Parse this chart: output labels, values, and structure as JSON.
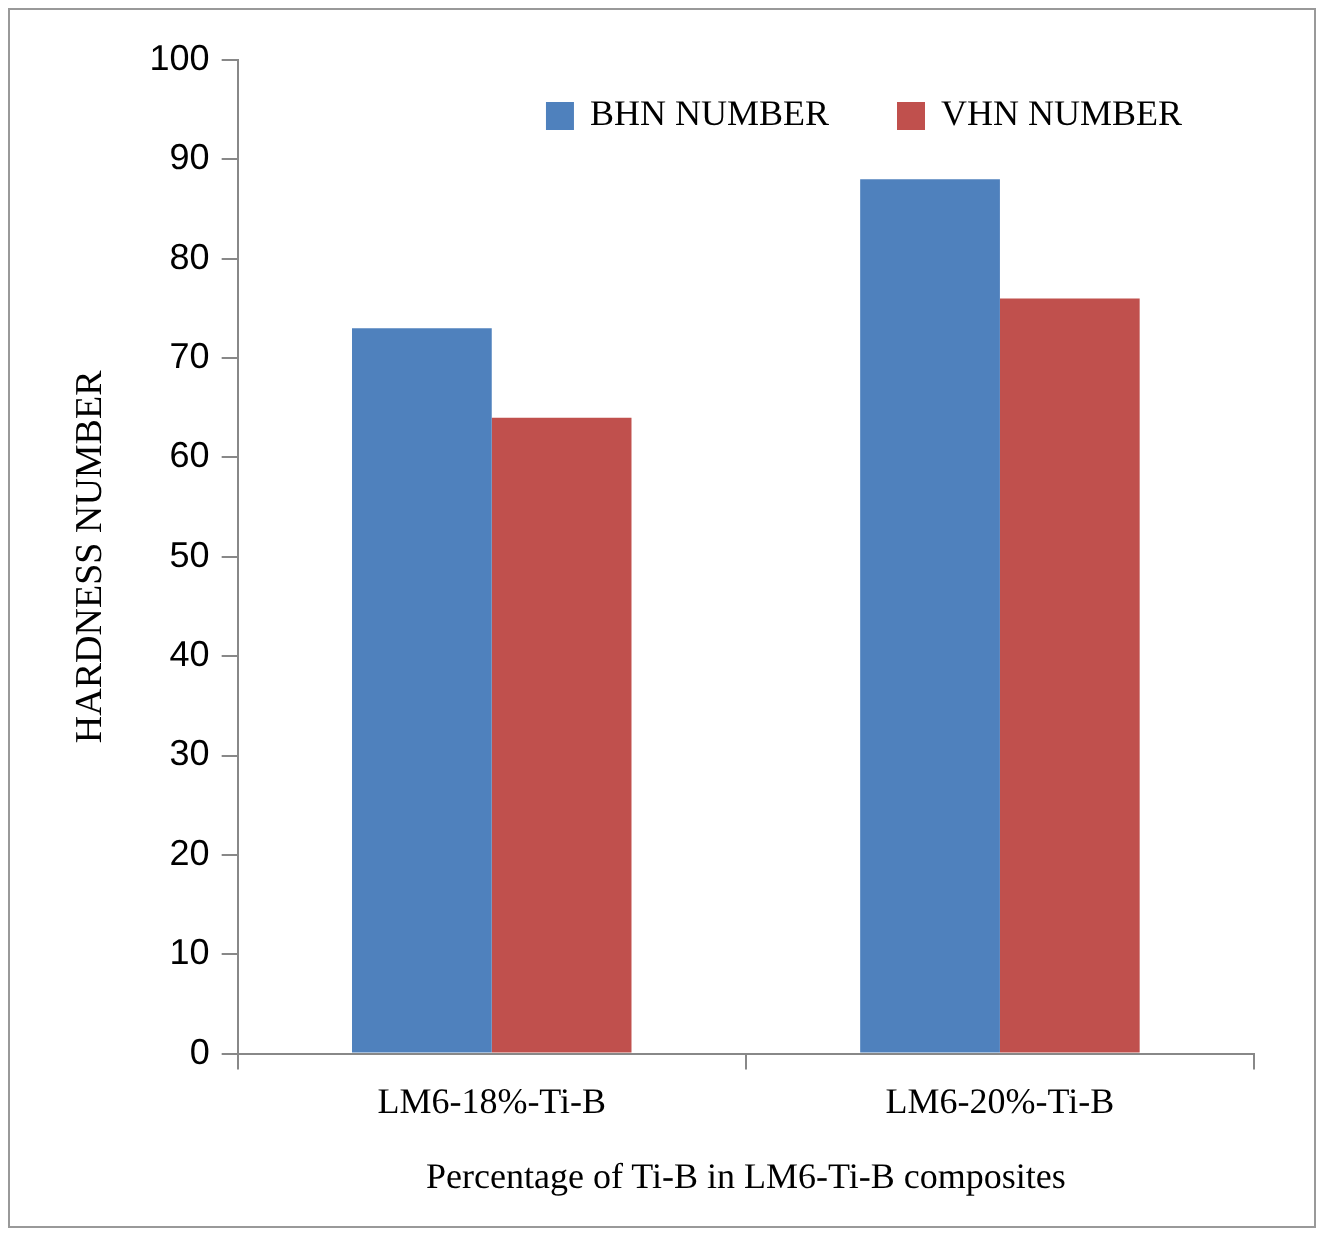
{
  "chart_data": {
    "type": "bar",
    "xlabel": "Percentage of Ti-B in LM6-Ti-B composites",
    "ylabel": "HARDNESS NUMBER",
    "categories": [
      "LM6-18%-Ti-B",
      "LM6-20%-Ti-B"
    ],
    "series": [
      {
        "name": "BHN NUMBER",
        "color": "#4f81bd",
        "values": [
          73,
          88
        ]
      },
      {
        "name": "VHN NUMBER",
        "color": "#c0504d",
        "values": [
          64,
          76
        ]
      }
    ],
    "ylim": [
      0,
      100
    ],
    "yticks": [
      0,
      10,
      20,
      30,
      40,
      50,
      60,
      70,
      80,
      90,
      100
    ],
    "legend": "top right"
  }
}
